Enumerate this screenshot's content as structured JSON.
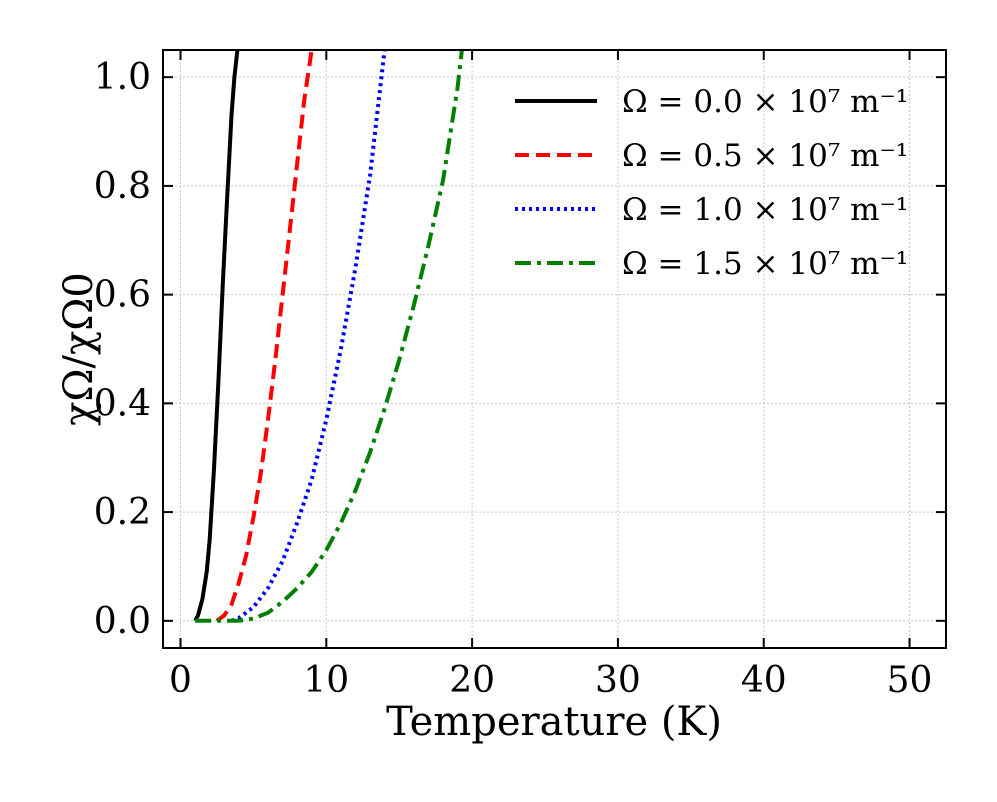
{
  "chart_data": {
    "type": "line",
    "xlabel": "Temperature (K)",
    "ylabel": "χΩ/χΩ0",
    "xlim": [
      -1.2,
      52.5
    ],
    "ylim": [
      -0.05,
      1.05
    ],
    "xticks": [
      0,
      10,
      20,
      30,
      40,
      50
    ],
    "yticks": [
      0.0,
      0.2,
      0.4,
      0.6,
      0.8,
      1.0
    ],
    "xtick_labels": [
      "0",
      "10",
      "20",
      "30",
      "40",
      "50"
    ],
    "ytick_labels": [
      "0.0",
      "0.2",
      "0.4",
      "0.6",
      "0.8",
      "1.0"
    ],
    "grid": true,
    "legend_position": "top-right",
    "series": [
      {
        "name": "Ω = 0.0 × 10⁷ m⁻¹",
        "color": "#000000",
        "style": "solid",
        "x": [
          1.0,
          1.2,
          1.5,
          1.8,
          2.0,
          2.3,
          2.6,
          2.9,
          3.2,
          3.5,
          3.7,
          3.9
        ],
        "y": [
          0.0,
          0.01,
          0.04,
          0.09,
          0.15,
          0.28,
          0.44,
          0.62,
          0.78,
          0.93,
          1.0,
          1.05
        ]
      },
      {
        "name": "Ω = 0.5 × 10⁷ m⁻¹",
        "color": "#ff0000",
        "style": "dashed",
        "x": [
          2.5,
          3.0,
          3.5,
          4.0,
          4.5,
          5.0,
          5.5,
          6.0,
          6.5,
          7.0,
          7.5,
          8.0,
          8.5,
          9.0
        ],
        "y": [
          0.0,
          0.01,
          0.03,
          0.07,
          0.12,
          0.19,
          0.27,
          0.37,
          0.48,
          0.6,
          0.72,
          0.84,
          0.96,
          1.05
        ]
      },
      {
        "name": "Ω = 1.0 × 10⁷ m⁻¹",
        "color": "#0000ff",
        "style": "dotted",
        "x": [
          3.5,
          4.0,
          5.0,
          6.0,
          7.0,
          8.0,
          9.0,
          10.0,
          11.0,
          12.0,
          13.0,
          14.0
        ],
        "y": [
          0.0,
          0.005,
          0.025,
          0.06,
          0.11,
          0.18,
          0.26,
          0.37,
          0.5,
          0.65,
          0.82,
          1.05
        ]
      },
      {
        "name": "Ω = 1.5 × 10⁷ m⁻¹",
        "color": "#008000",
        "style": "dashdot",
        "x": [
          1.0,
          3.0,
          4.0,
          5.0,
          6.0,
          7.0,
          8.0,
          9.0,
          10.0,
          11.0,
          12.0,
          13.0,
          14.0,
          15.0,
          16.0,
          17.0,
          18.0,
          19.0,
          19.3
        ],
        "y": [
          0.0,
          0.0,
          0.0,
          0.004,
          0.015,
          0.035,
          0.06,
          0.09,
          0.13,
          0.18,
          0.24,
          0.31,
          0.39,
          0.48,
          0.58,
          0.69,
          0.81,
          0.98,
          1.05
        ]
      }
    ]
  }
}
